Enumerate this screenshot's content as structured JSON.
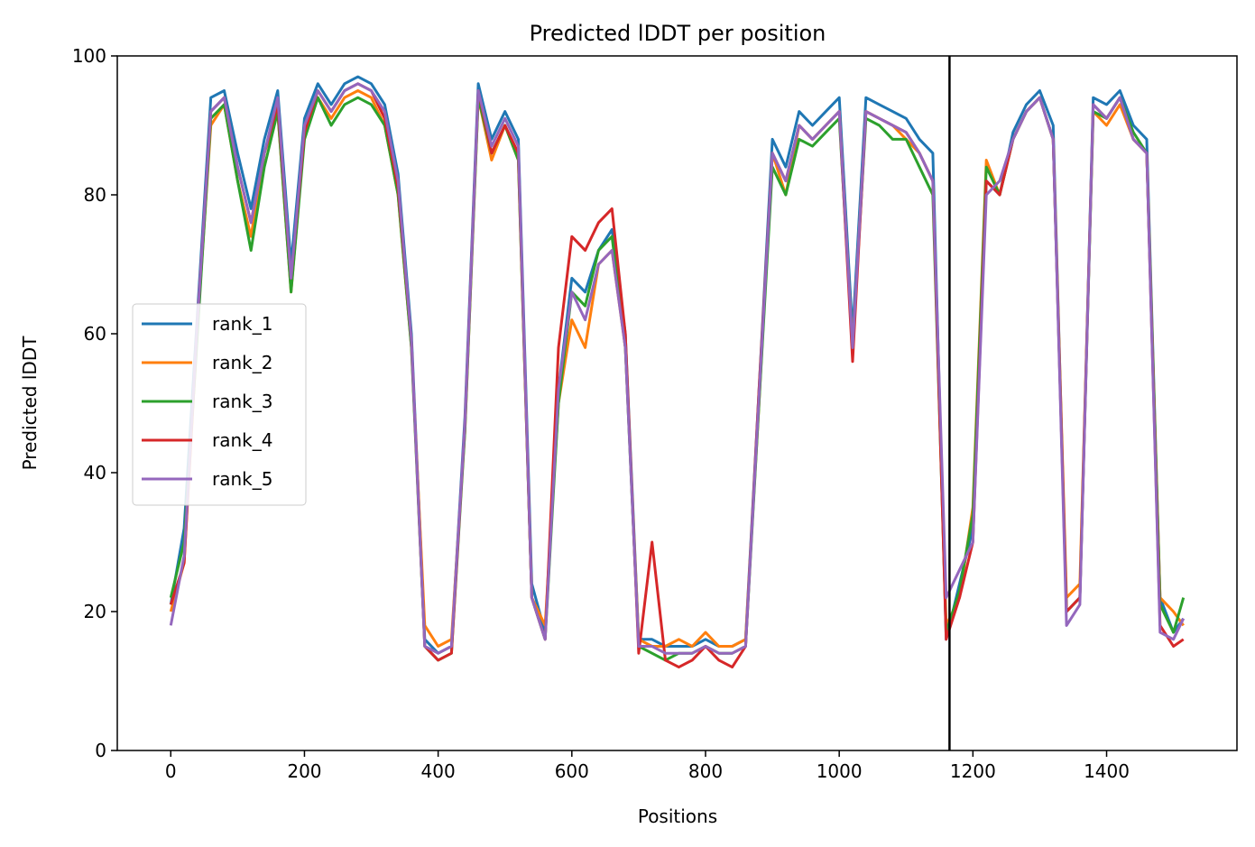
{
  "chart_data": {
    "type": "line",
    "title": "Predicted lDDT per position",
    "xlabel": "Positions",
    "ylabel": "Predicted lDDT",
    "xlim": [
      -80,
      1595
    ],
    "ylim": [
      0,
      100
    ],
    "xticks": [
      0,
      200,
      400,
      600,
      800,
      1000,
      1200,
      1400
    ],
    "yticks": [
      0,
      20,
      40,
      60,
      80,
      100
    ],
    "xtick_labels": [
      "0",
      "200",
      "400",
      "600",
      "800",
      "1000",
      "1200",
      "1400"
    ],
    "ytick_labels": [
      "0",
      "20",
      "40",
      "60",
      "80",
      "100"
    ],
    "grid": false,
    "legend_position": "center-left",
    "vertical_line": {
      "x": 1165,
      "color": "#000000"
    },
    "x": [
      0,
      20,
      40,
      60,
      80,
      100,
      120,
      140,
      160,
      180,
      200,
      220,
      240,
      260,
      280,
      300,
      320,
      340,
      360,
      380,
      400,
      420,
      440,
      460,
      480,
      500,
      520,
      540,
      560,
      580,
      600,
      620,
      640,
      660,
      680,
      700,
      720,
      740,
      760,
      780,
      800,
      820,
      840,
      860,
      880,
      900,
      920,
      940,
      960,
      980,
      1000,
      1020,
      1040,
      1060,
      1080,
      1100,
      1120,
      1140,
      1160,
      1180,
      1200,
      1220,
      1240,
      1260,
      1280,
      1300,
      1320,
      1340,
      1360,
      1380,
      1400,
      1420,
      1440,
      1460,
      1480,
      1500,
      1515
    ],
    "series": [
      {
        "name": "rank_1",
        "color": "#1f77b4",
        "values": [
          21,
          32,
          63,
          94,
          95,
          86,
          78,
          88,
          95,
          70,
          91,
          96,
          93,
          96,
          97,
          96,
          93,
          83,
          60,
          16,
          14,
          15,
          48,
          96,
          88,
          92,
          88,
          24,
          17,
          52,
          68,
          66,
          72,
          75,
          60,
          16,
          16,
          15,
          15,
          15,
          16,
          15,
          15,
          16,
          52,
          88,
          84,
          92,
          90,
          92,
          94,
          60,
          94,
          93,
          92,
          91,
          88,
          86,
          16,
          24,
          32,
          82,
          80,
          89,
          93,
          95,
          90,
          20,
          22,
          94,
          93,
          95,
          90,
          88,
          22,
          17,
          19
        ]
      },
      {
        "name": "rank_2",
        "color": "#ff7f0e",
        "values": [
          20,
          27,
          61,
          90,
          93,
          82,
          74,
          86,
          92,
          66,
          89,
          94,
          91,
          94,
          95,
          94,
          90,
          80,
          58,
          18,
          15,
          16,
          46,
          94,
          85,
          90,
          85,
          22,
          18,
          50,
          62,
          58,
          70,
          72,
          58,
          16,
          15,
          15,
          16,
          15,
          17,
          15,
          15,
          16,
          50,
          86,
          80,
          90,
          88,
          90,
          92,
          58,
          92,
          91,
          90,
          88,
          86,
          82,
          18,
          22,
          35,
          85,
          80,
          88,
          92,
          94,
          88,
          22,
          24,
          92,
          90,
          93,
          88,
          86,
          22,
          20,
          18
        ]
      },
      {
        "name": "rank_3",
        "color": "#2ca02c",
        "values": [
          22,
          30,
          60,
          91,
          93,
          82,
          72,
          84,
          92,
          66,
          88,
          94,
          90,
          93,
          94,
          93,
          90,
          80,
          58,
          15,
          13,
          14,
          46,
          94,
          86,
          90,
          85,
          22,
          16,
          50,
          66,
          64,
          72,
          74,
          58,
          15,
          14,
          13,
          14,
          14,
          15,
          14,
          14,
          15,
          50,
          84,
          80,
          88,
          87,
          89,
          91,
          58,
          91,
          90,
          88,
          88,
          84,
          80,
          17,
          23,
          34,
          84,
          80,
          88,
          92,
          94,
          88,
          20,
          22,
          92,
          91,
          94,
          89,
          86,
          21,
          17,
          22
        ]
      },
      {
        "name": "rank_4",
        "color": "#d62728",
        "values": [
          21,
          27,
          62,
          92,
          94,
          84,
          76,
          86,
          93,
          68,
          89,
          95,
          92,
          95,
          96,
          95,
          91,
          81,
          59,
          15,
          13,
          14,
          47,
          95,
          86,
          90,
          86,
          22,
          16,
          58,
          74,
          72,
          76,
          78,
          60,
          14,
          30,
          13,
          12,
          13,
          15,
          13,
          12,
          15,
          52,
          86,
          82,
          90,
          88,
          90,
          92,
          56,
          92,
          91,
          90,
          89,
          86,
          82,
          16,
          22,
          30,
          82,
          80,
          88,
          92,
          94,
          88,
          20,
          22,
          93,
          91,
          94,
          88,
          86,
          18,
          15,
          16
        ]
      },
      {
        "name": "rank_5",
        "color": "#9467bd",
        "values": [
          18,
          28,
          62,
          92,
          94,
          84,
          76,
          86,
          94,
          68,
          90,
          95,
          92,
          95,
          96,
          95,
          92,
          82,
          59,
          15,
          14,
          15,
          47,
          95,
          87,
          91,
          87,
          22,
          16,
          52,
          66,
          62,
          70,
          72,
          58,
          15,
          15,
          14,
          14,
          14,
          15,
          14,
          14,
          15,
          51,
          86,
          82,
          90,
          88,
          90,
          92,
          58,
          92,
          91,
          90,
          89,
          86,
          82,
          22,
          26,
          30,
          80,
          82,
          88,
          92,
          94,
          88,
          18,
          21,
          93,
          91,
          94,
          88,
          86,
          17,
          16,
          19
        ]
      }
    ]
  }
}
